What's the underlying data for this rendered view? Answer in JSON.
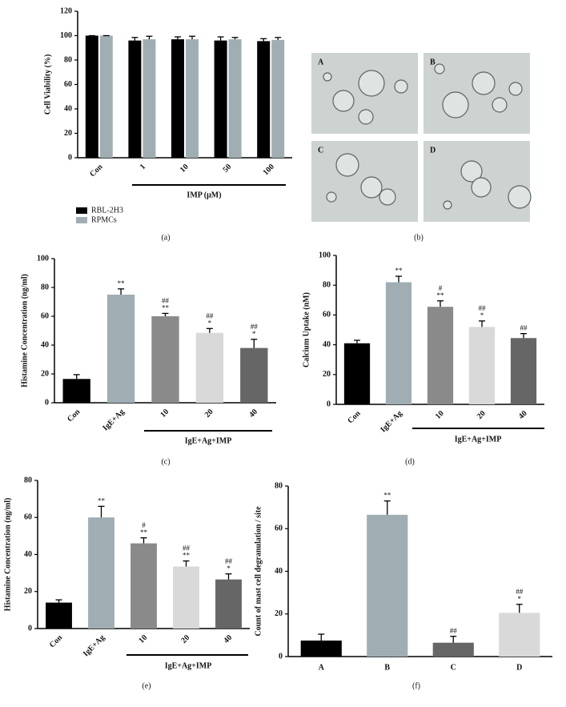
{
  "chart_data": [
    {
      "type": "grouped-bar",
      "panel_label": "(a)",
      "y_label": "Cell Viability (%)",
      "group_label": "IMP (μM)",
      "categories": [
        "Con",
        "1",
        "10",
        "50",
        "100"
      ],
      "series": [
        {
          "name": "RBL-2H3",
          "color": "#000000",
          "values": [
            100,
            96,
            97,
            96,
            95.5
          ],
          "errors": [
            0,
            2.5,
            2,
            3,
            2
          ]
        },
        {
          "name": "RPMCs",
          "color": "#a0aeb3",
          "values": [
            100,
            97,
            97,
            97,
            96.5
          ],
          "errors": [
            0,
            2.5,
            2.5,
            1.5,
            2
          ]
        }
      ],
      "ylim": [
        0,
        120
      ],
      "yticks": [
        0,
        20,
        40,
        60,
        80,
        100,
        120
      ]
    },
    {
      "type": "image-grid",
      "panel_label": "(b)",
      "labels": [
        "A",
        "B",
        "C",
        "D"
      ]
    },
    {
      "type": "bar",
      "panel_label": "(c)",
      "y_label": "Histamine Concentration (ng/ml)",
      "group_label": "IgE+Ag+IMP",
      "categories": [
        "Con",
        "IgE+Ag",
        "10",
        "20",
        "40"
      ],
      "values": [
        16.5,
        75,
        60,
        48.5,
        38
      ],
      "errors": [
        3,
        4,
        2,
        3,
        6
      ],
      "colors": [
        "#000000",
        "#a0aeb3",
        "#8a8a8a",
        "#d9d9d9",
        "#666666"
      ],
      "annotations": [
        [],
        [
          "**"
        ],
        [
          "##",
          "**"
        ],
        [
          "##",
          "*"
        ],
        [
          "##",
          "*"
        ]
      ],
      "ylim": [
        0,
        100
      ],
      "yticks": [
        0,
        20,
        40,
        60,
        80,
        100
      ]
    },
    {
      "type": "bar",
      "panel_label": "(d)",
      "y_label": "Calcium Uptake (nM)",
      "group_label": "IgE+Ag+IMP",
      "categories": [
        "Con",
        "IgE+Ag",
        "10",
        "20",
        "40"
      ],
      "values": [
        41,
        82,
        65.5,
        52,
        44.5
      ],
      "errors": [
        2,
        4,
        4,
        4,
        3
      ],
      "colors": [
        "#000000",
        "#a0aeb3",
        "#8a8a8a",
        "#d9d9d9",
        "#666666"
      ],
      "annotations": [
        [],
        [
          "**"
        ],
        [
          "#",
          "**"
        ],
        [
          "##",
          "*"
        ],
        [
          "##"
        ]
      ],
      "ylim": [
        0,
        100
      ],
      "yticks": [
        0,
        20,
        40,
        60,
        80,
        100
      ]
    },
    {
      "type": "bar",
      "panel_label": "(e)",
      "y_label": "Histamine Concentration (ng/ml)",
      "group_label": "IgE+Ag+IMP",
      "categories": [
        "Con",
        "IgE+Ag",
        "10",
        "20",
        "40"
      ],
      "values": [
        14,
        60,
        46,
        33.5,
        26.5
      ],
      "errors": [
        1.5,
        6,
        3,
        3,
        3
      ],
      "colors": [
        "#000000",
        "#a0aeb3",
        "#8a8a8a",
        "#d9d9d9",
        "#666666"
      ],
      "annotations": [
        [],
        [
          "**"
        ],
        [
          "#",
          "**"
        ],
        [
          "##",
          "**"
        ],
        [
          "##",
          "*"
        ]
      ],
      "ylim": [
        0,
        80
      ],
      "yticks": [
        0,
        20,
        40,
        60,
        80
      ]
    },
    {
      "type": "bar",
      "panel_label": "(f)",
      "y_label": "Count of mast cell degranulation / site",
      "categories": [
        "A",
        "B",
        "C",
        "D"
      ],
      "values": [
        7.5,
        66.5,
        6.5,
        20.5
      ],
      "errors": [
        3,
        6.5,
        3,
        4
      ],
      "colors": [
        "#000000",
        "#a0aeb3",
        "#666666",
        "#d9d9d9"
      ],
      "annotations": [
        [],
        [
          "**"
        ],
        [
          "##"
        ],
        [
          "##",
          "*"
        ]
      ],
      "ylim": [
        0,
        80
      ],
      "yticks": [
        0,
        20,
        40,
        60,
        80
      ]
    }
  ]
}
